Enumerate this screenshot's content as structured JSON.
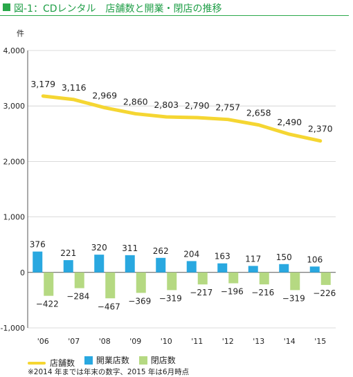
{
  "title": "図-1：CDレンタル　店舗数と開業・閉店の推移",
  "colors": {
    "stores": "#f5d632",
    "opened": "#29a8e0",
    "closed": "#b5d982",
    "accent": "#2aa84a"
  },
  "chart_data": {
    "type": "bar",
    "ylabel": "件",
    "ylim": [
      -1000,
      4000
    ],
    "yticks": [
      4000,
      3000,
      2000,
      1000,
      0,
      -1000
    ],
    "ytick_labels": [
      "4,000",
      "3,000",
      "2,000",
      "1,000",
      "0",
      "-1,000"
    ],
    "categories": [
      "'06",
      "'07",
      "'08",
      "'09",
      "'10",
      "'11",
      "'12",
      "'13",
      "'14",
      "'15"
    ],
    "grid": true,
    "legend_position": "bottom",
    "series": [
      {
        "name": "店舗数",
        "kind": "line",
        "values": [
          3179,
          3116,
          2969,
          2860,
          2803,
          2790,
          2757,
          2658,
          2490,
          2370
        ],
        "labels": [
          "3,179",
          "3,116",
          "2,969",
          "2,860",
          "2,803",
          "2,790",
          "2,757",
          "2,658",
          "2,490",
          "2,370"
        ]
      },
      {
        "name": "開業店数",
        "kind": "bar",
        "values": [
          376,
          221,
          320,
          311,
          262,
          204,
          163,
          117,
          150,
          106
        ],
        "labels": [
          "376",
          "221",
          "320",
          "311",
          "262",
          "204",
          "163",
          "117",
          "150",
          "106"
        ]
      },
      {
        "name": "閉店数",
        "kind": "bar",
        "values": [
          -422,
          -284,
          -467,
          -369,
          -319,
          -217,
          -196,
          -216,
          -319,
          -226
        ],
        "labels": [
          "−422",
          "−284",
          "−467",
          "−369",
          "−319",
          "−217",
          "−196",
          "−216",
          "−319",
          "−226"
        ]
      }
    ],
    "footnote": "※2014 年までは年末の数字、2015 年は6月時点"
  }
}
